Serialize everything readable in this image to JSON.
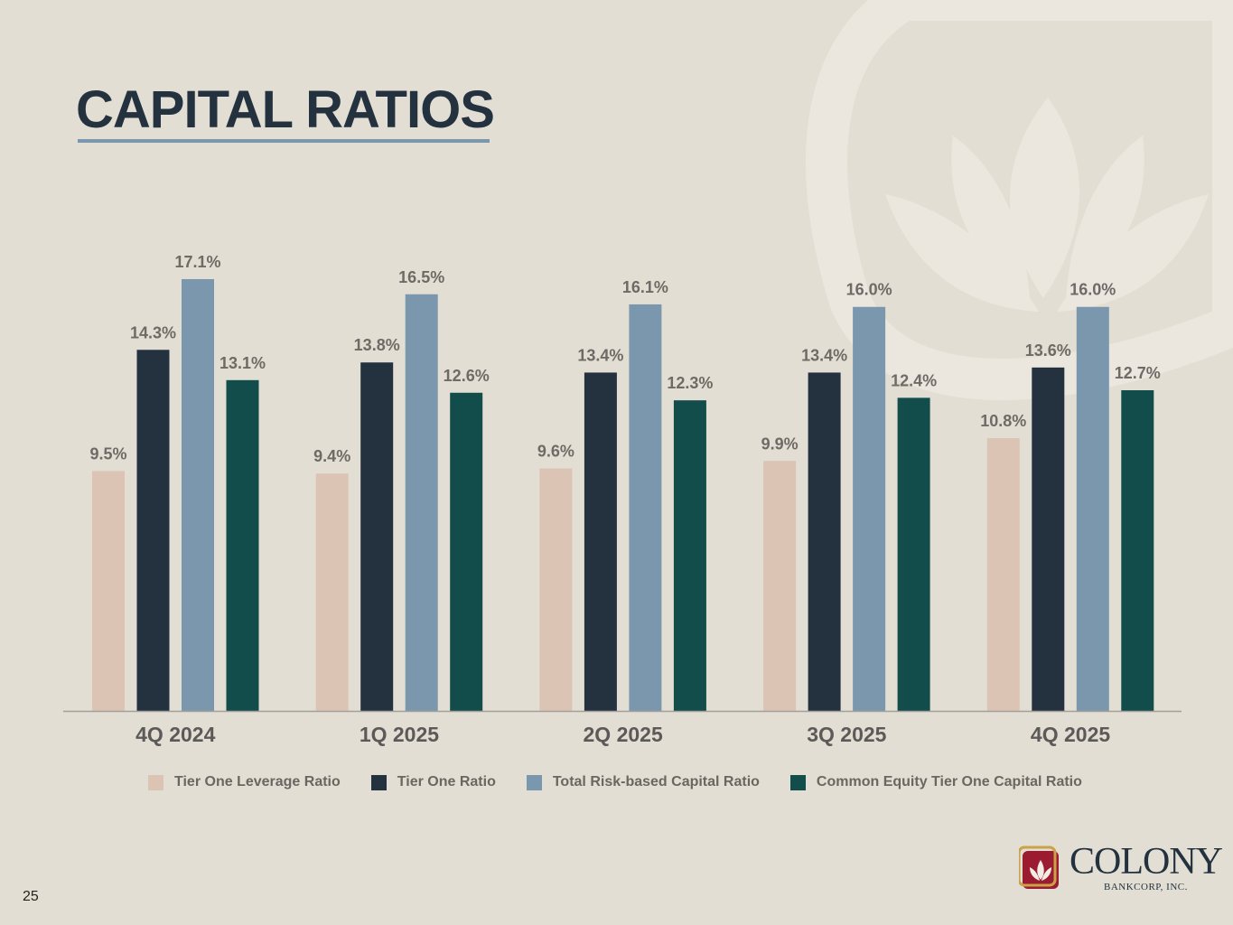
{
  "page": {
    "title": "CAPITAL RATIOS",
    "page_number": "25"
  },
  "logo": {
    "name": "COLONY",
    "subtitle": "BANKCORP, INC."
  },
  "colors": {
    "background": "#e3ded3",
    "title": "#243240",
    "tier_one_leverage": "#dcc4b5",
    "tier_one": "#243240",
    "total_risk_based": "#7a97ae",
    "cet1": "#124c4b"
  },
  "chart_data": {
    "type": "bar",
    "title": "CAPITAL RATIOS",
    "categories": [
      "4Q 2024",
      "1Q 2025",
      "2Q 2025",
      "3Q 2025",
      "4Q 2025"
    ],
    "series": [
      {
        "name": "Tier One Leverage Ratio",
        "color": "#dcc4b5",
        "values": [
          9.5,
          9.4,
          9.6,
          9.9,
          10.8
        ],
        "labels": [
          "9.5%",
          "9.4%",
          "9.6%",
          "9.9%",
          "10.8%"
        ]
      },
      {
        "name": "Tier One Ratio",
        "color": "#243240",
        "values": [
          14.3,
          13.8,
          13.4,
          13.4,
          13.6
        ],
        "labels": [
          "14.3%",
          "13.8%",
          "13.4%",
          "13.4%",
          "13.6%"
        ]
      },
      {
        "name": "Total Risk-based Capital Ratio",
        "color": "#7a97ae",
        "values": [
          17.1,
          16.5,
          16.1,
          16.0,
          16.0
        ],
        "labels": [
          "17.1%",
          "16.5%",
          "16.1%",
          "16.0%",
          "16.0%"
        ]
      },
      {
        "name": "Common Equity Tier One Capital Ratio",
        "color": "#124c4b",
        "values": [
          13.1,
          12.6,
          12.3,
          12.4,
          12.7
        ],
        "labels": [
          "13.1%",
          "12.6%",
          "12.3%",
          "12.4%",
          "12.7%"
        ]
      }
    ],
    "xlabel": "",
    "ylabel": "",
    "ylim": [
      0,
      17.1
    ],
    "grid": false,
    "legend": "bottom"
  }
}
